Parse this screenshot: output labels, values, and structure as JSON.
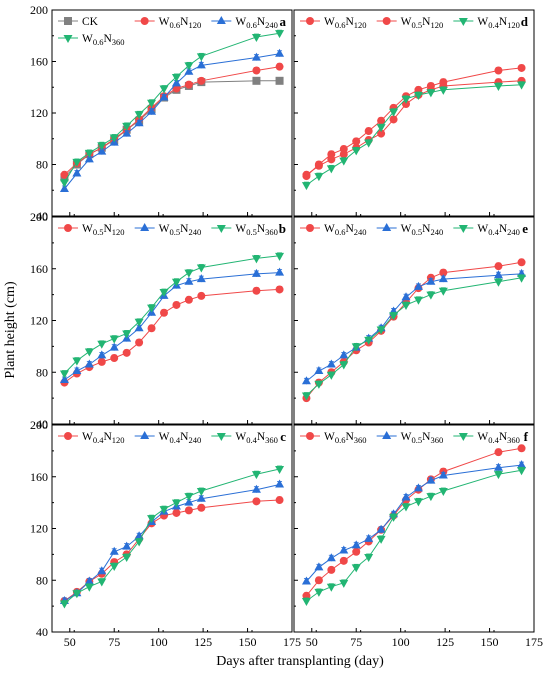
{
  "figure": {
    "xlabel": "Days after transplanting (day)",
    "ylabel": "Plant height (cm)"
  },
  "series_styles": {
    "CK": {
      "color": "#808080",
      "marker": "square"
    },
    "N120": {
      "color": "#f04848",
      "marker": "circle"
    },
    "N240": {
      "color": "#2a6fd6",
      "marker": "triangle-up"
    },
    "N360": {
      "color": "#22b573",
      "marker": "triangle-down"
    }
  },
  "chart_data": [
    {
      "panel": "a",
      "type": "line",
      "xlim": [
        40,
        175
      ],
      "ylim": [
        40,
        200
      ],
      "xticks": [
        50,
        75,
        100,
        125,
        150,
        175
      ],
      "yticks": [
        40,
        80,
        120,
        160,
        200
      ],
      "x": [
        47,
        54,
        61,
        68,
        75,
        82,
        89,
        96,
        103,
        110,
        117,
        124,
        155,
        168
      ],
      "series": [
        {
          "name": "CK",
          "style": "CK",
          "values": [
            70,
            80,
            88,
            93,
            99,
            107,
            114,
            123,
            132,
            138,
            141,
            144,
            145,
            145
          ]
        },
        {
          "name": "W0.6N120",
          "style": "N120",
          "values": [
            72,
            81,
            88,
            93,
            100,
            107,
            115,
            124,
            133,
            139,
            142,
            145,
            153,
            156
          ]
        },
        {
          "name": "W0.6N240",
          "style": "N240",
          "values": [
            61,
            73,
            84,
            90,
            97,
            104,
            112,
            121,
            132,
            143,
            152,
            157,
            163,
            166
          ]
        },
        {
          "name": "W0.6N360",
          "style": "N360",
          "values": [
            66,
            82,
            89,
            95,
            101,
            110,
            119,
            128,
            139,
            148,
            157,
            164,
            179,
            182
          ]
        }
      ]
    },
    {
      "panel": "b",
      "type": "line",
      "xlim": [
        40,
        175
      ],
      "ylim": [
        40,
        200
      ],
      "xticks": [
        50,
        75,
        100,
        125,
        150,
        175
      ],
      "yticks": [
        40,
        80,
        120,
        160,
        200
      ],
      "x": [
        47,
        54,
        61,
        68,
        75,
        82,
        89,
        96,
        103,
        110,
        117,
        124,
        155,
        168
      ],
      "series": [
        {
          "name": "W0.5N120",
          "style": "N120",
          "values": [
            72,
            79,
            84,
            88,
            91,
            95,
            103,
            114,
            126,
            132,
            136,
            139,
            143,
            144
          ]
        },
        {
          "name": "W0.5N240",
          "style": "N240",
          "values": [
            74,
            81,
            86,
            93,
            99,
            106,
            114,
            126,
            139,
            147,
            150,
            152,
            156,
            157
          ]
        },
        {
          "name": "W0.5N360",
          "style": "N360",
          "values": [
            79,
            89,
            96,
            102,
            106,
            110,
            119,
            130,
            142,
            150,
            157,
            161,
            168,
            170
          ]
        }
      ]
    },
    {
      "panel": "c",
      "type": "line",
      "xlim": [
        40,
        175
      ],
      "ylim": [
        40,
        200
      ],
      "xticks": [
        50,
        75,
        100,
        125,
        150,
        175
      ],
      "yticks": [
        40,
        80,
        120,
        160,
        200
      ],
      "x": [
        47,
        54,
        61,
        68,
        75,
        82,
        89,
        96,
        103,
        110,
        117,
        124,
        155,
        168
      ],
      "series": [
        {
          "name": "W0.4N120",
          "style": "N120",
          "values": [
            64,
            71,
            79,
            85,
            94,
            100,
            112,
            124,
            130,
            132,
            134,
            136,
            141,
            142
          ]
        },
        {
          "name": "W0.4N240",
          "style": "N240",
          "values": [
            64,
            70,
            79,
            87,
            102,
            106,
            114,
            125,
            133,
            137,
            140,
            143,
            150,
            154
          ]
        },
        {
          "name": "W0.4N360",
          "style": "N360",
          "values": [
            62,
            70,
            75,
            79,
            91,
            98,
            110,
            128,
            135,
            140,
            145,
            149,
            162,
            166
          ]
        }
      ]
    },
    {
      "panel": "d",
      "type": "line",
      "xlim": [
        40,
        175
      ],
      "ylim": [
        40,
        200
      ],
      "xticks": [
        50,
        75,
        100,
        125,
        150,
        175
      ],
      "yticks": [
        40,
        80,
        120,
        160,
        200
      ],
      "x": [
        47,
        54,
        61,
        68,
        75,
        82,
        89,
        96,
        103,
        110,
        117,
        124,
        155,
        168
      ],
      "series": [
        {
          "name": "W0.6N120",
          "style": "N120",
          "values": [
            71,
            80,
            88,
            92,
            98,
            106,
            114,
            124,
            133,
            138,
            141,
            144,
            153,
            155
          ]
        },
        {
          "name": "W0.5N120",
          "style": "N120",
          "values": [
            72,
            79,
            84,
            88,
            93,
            99,
            104,
            115,
            127,
            134,
            138,
            141,
            144,
            145
          ]
        },
        {
          "name": "W0.4N120",
          "style": "N360",
          "values": [
            64,
            71,
            77,
            83,
            91,
            97,
            109,
            121,
            131,
            134,
            136,
            138,
            141,
            142
          ]
        }
      ]
    },
    {
      "panel": "e",
      "type": "line",
      "xlim": [
        40,
        175
      ],
      "ylim": [
        40,
        200
      ],
      "xticks": [
        50,
        75,
        100,
        125,
        150,
        175
      ],
      "yticks": [
        40,
        80,
        120,
        160,
        200
      ],
      "x": [
        47,
        54,
        61,
        68,
        75,
        82,
        89,
        96,
        103,
        110,
        117,
        124,
        155,
        168
      ],
      "series": [
        {
          "name": "W0.6N240",
          "style": "N120",
          "values": [
            60,
            72,
            80,
            88,
            97,
            103,
            112,
            123,
            134,
            145,
            153,
            157,
            162,
            165
          ]
        },
        {
          "name": "W0.5N240",
          "style": "N240",
          "values": [
            73,
            81,
            86,
            93,
            99,
            106,
            114,
            127,
            138,
            146,
            150,
            152,
            155,
            156
          ]
        },
        {
          "name": "W0.4N240",
          "style": "N360",
          "values": [
            62,
            71,
            78,
            86,
            100,
            105,
            113,
            124,
            132,
            136,
            140,
            143,
            150,
            153
          ]
        }
      ]
    },
    {
      "panel": "f",
      "type": "line",
      "xlim": [
        40,
        175
      ],
      "ylim": [
        40,
        200
      ],
      "xticks": [
        50,
        75,
        100,
        125,
        150,
        175
      ],
      "yticks": [
        40,
        80,
        120,
        160,
        200
      ],
      "x": [
        47,
        54,
        61,
        68,
        75,
        82,
        89,
        96,
        103,
        110,
        117,
        124,
        155,
        168
      ],
      "series": [
        {
          "name": "W0.6N360",
          "style": "N120",
          "values": [
            68,
            80,
            88,
            95,
            102,
            110,
            119,
            130,
            142,
            150,
            158,
            164,
            179,
            182
          ]
        },
        {
          "name": "W0.5N360",
          "style": "N240",
          "values": [
            79,
            90,
            97,
            103,
            107,
            112,
            119,
            131,
            144,
            151,
            157,
            161,
            167,
            169
          ]
        },
        {
          "name": "W0.4N360",
          "style": "N360",
          "values": [
            64,
            71,
            75,
            78,
            90,
            98,
            112,
            129,
            137,
            141,
            145,
            149,
            162,
            165
          ]
        }
      ]
    }
  ]
}
